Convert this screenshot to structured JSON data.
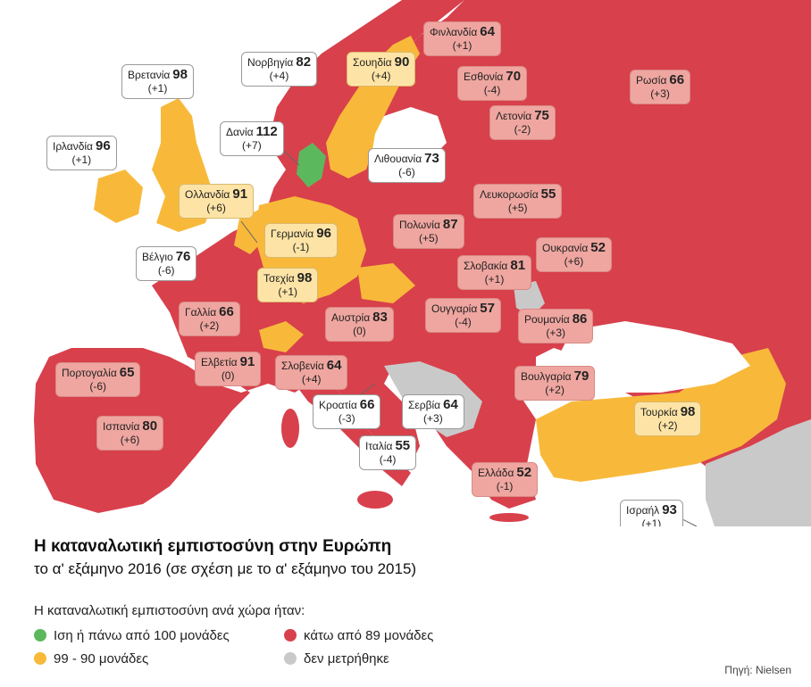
{
  "colors": {
    "green": "#5cb85c",
    "yellow": "#f8b93b",
    "red": "#d8404c",
    "gray": "#c9c9c9",
    "sea": "#ffffff"
  },
  "countries": [
    {
      "id": "finland",
      "name": "Φινλανδία",
      "value": "64",
      "change": "(+1)",
      "style": "p"
    },
    {
      "id": "norway",
      "name": "Νορβηγία",
      "value": "82",
      "change": "(+4)",
      "style": "w"
    },
    {
      "id": "sweden",
      "name": "Σουηδία",
      "value": "90",
      "change": "(+4)",
      "style": "y"
    },
    {
      "id": "estonia",
      "name": "Εσθονία",
      "value": "70",
      "change": "(-4)",
      "style": "p"
    },
    {
      "id": "russia",
      "name": "Ρωσία",
      "value": "66",
      "change": "(+3)",
      "style": "p"
    },
    {
      "id": "britain",
      "name": "Βρετανία",
      "value": "98",
      "change": "(+1)",
      "style": "w"
    },
    {
      "id": "latvia",
      "name": "Λετονία",
      "value": "75",
      "change": "(-2)",
      "style": "p"
    },
    {
      "id": "denmark",
      "name": "Δανία",
      "value": "112",
      "change": "(+7)",
      "style": "w"
    },
    {
      "id": "ireland",
      "name": "Ιρλανδία",
      "value": "96",
      "change": "(+1)",
      "style": "w"
    },
    {
      "id": "lithuania",
      "name": "Λιθουανία",
      "value": "73",
      "change": "(-6)",
      "style": "w"
    },
    {
      "id": "netherlands",
      "name": "Ολλανδία",
      "value": "91",
      "change": "(+6)",
      "style": "y"
    },
    {
      "id": "belarus",
      "name": "Λευκορωσία",
      "value": "55",
      "change": "(+5)",
      "style": "p"
    },
    {
      "id": "germany",
      "name": "Γερμανία",
      "value": "96",
      "change": "(-1)",
      "style": "y"
    },
    {
      "id": "poland",
      "name": "Πολωνία",
      "value": "87",
      "change": "(+5)",
      "style": "p"
    },
    {
      "id": "ukraine",
      "name": "Ουκρανία",
      "value": "52",
      "change": "(+6)",
      "style": "p"
    },
    {
      "id": "belgium",
      "name": "Βέλγιο",
      "value": "76",
      "change": "(-6)",
      "style": "w"
    },
    {
      "id": "czechia",
      "name": "Τσεχία",
      "value": "98",
      "change": "(+1)",
      "style": "y"
    },
    {
      "id": "slovakia",
      "name": "Σλοβακία",
      "value": "81",
      "change": "(+1)",
      "style": "p"
    },
    {
      "id": "france",
      "name": "Γαλλία",
      "value": "66",
      "change": "(+2)",
      "style": "p"
    },
    {
      "id": "austria",
      "name": "Αυστρία",
      "value": "83",
      "change": "(0)",
      "style": "p"
    },
    {
      "id": "hungary",
      "name": "Ουγγαρία",
      "value": "57",
      "change": "(-4)",
      "style": "p"
    },
    {
      "id": "romania",
      "name": "Ρουμανία",
      "value": "86",
      "change": "(+3)",
      "style": "p"
    },
    {
      "id": "portugal",
      "name": "Πορτογαλία",
      "value": "65",
      "change": "(-6)",
      "style": "p"
    },
    {
      "id": "switzerland",
      "name": "Ελβετία",
      "value": "91",
      "change": "(0)",
      "style": "p"
    },
    {
      "id": "slovenia",
      "name": "Σλοβενία",
      "value": "64",
      "change": "(+4)",
      "style": "p"
    },
    {
      "id": "bulgaria",
      "name": "Βουλγαρία",
      "value": "79",
      "change": "(+2)",
      "style": "p"
    },
    {
      "id": "croatia",
      "name": "Κροατία",
      "value": "66",
      "change": "(-3)",
      "style": "w"
    },
    {
      "id": "serbia",
      "name": "Σερβία",
      "value": "64",
      "change": "(+3)",
      "style": "w"
    },
    {
      "id": "turkey",
      "name": "Τουρκία",
      "value": "98",
      "change": "(+2)",
      "style": "y"
    },
    {
      "id": "spain",
      "name": "Ισπανία",
      "value": "80",
      "change": "(+6)",
      "style": "p"
    },
    {
      "id": "italy",
      "name": "Ιταλία",
      "value": "55",
      "change": "(-4)",
      "style": "w"
    },
    {
      "id": "greece",
      "name": "Ελλάδα",
      "value": "52",
      "change": "(-1)",
      "style": "p"
    },
    {
      "id": "israel",
      "name": "Ισραήλ",
      "value": "93",
      "change": "(+1)",
      "style": "w"
    }
  ],
  "title": "Η καταναλωτική εμπιστοσύνη στην Ευρώπη",
  "subtitle": "το α' εξάμηνο 2016 (σε σχέση με το α' εξάμηνο του 2015)",
  "legend": {
    "title": "Η καταναλωτική εμπιστοσύνη ανά χώρα ήταν:",
    "items": [
      {
        "label": "Ιση ή πάνω από 100 μονάδες",
        "color": "#5cb85c"
      },
      {
        "label": "κάτω από 89 μονάδες",
        "color": "#d8404c"
      },
      {
        "label": "99 - 90  μονάδες",
        "color": "#f8b93b"
      },
      {
        "label": "δεν μετρήθηκε",
        "color": "#c9c9c9"
      }
    ]
  },
  "source": "Πηγή: Nielsen"
}
